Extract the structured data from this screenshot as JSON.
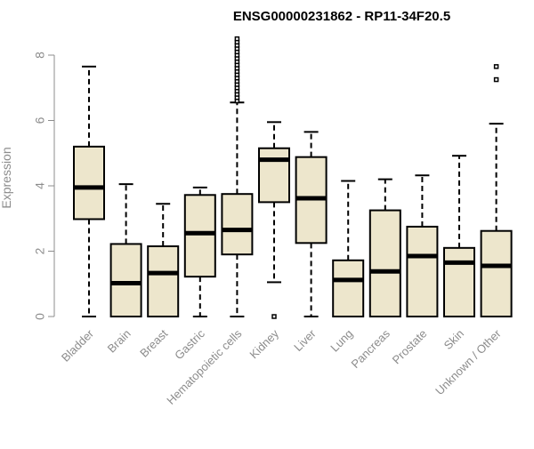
{
  "chart_data": {
    "type": "boxplot",
    "title": "ENSG00000231862 - RP11-34F20.5",
    "xlabel": "",
    "ylabel": "Expression",
    "ylim": [
      0,
      8.6
    ],
    "yticks": [
      0,
      2,
      4,
      6,
      8
    ],
    "grid": false,
    "legend": "none",
    "box_fill": "#ede6cc",
    "box_stroke": "#000000",
    "categories": [
      {
        "name": "Bladder",
        "q1": 2.98,
        "median": 3.95,
        "q3": 5.2,
        "whisker_low": 0.0,
        "whisker_high": 7.65,
        "outliers": []
      },
      {
        "name": "Brain",
        "q1": 0.0,
        "median": 1.02,
        "q3": 2.22,
        "whisker_low": 0.0,
        "whisker_high": 4.05,
        "outliers": []
      },
      {
        "name": "Breast",
        "q1": 0.0,
        "median": 1.33,
        "q3": 2.15,
        "whisker_low": 0.0,
        "whisker_high": 3.45,
        "outliers": []
      },
      {
        "name": "Gastric",
        "q1": 1.22,
        "median": 2.55,
        "q3": 3.72,
        "whisker_low": 0.0,
        "whisker_high": 3.95,
        "outliers": []
      },
      {
        "name": "Hematopoietic cells",
        "q1": 1.9,
        "median": 2.65,
        "q3": 3.75,
        "whisker_low": 0.0,
        "whisker_high": 6.55,
        "outliers": [
          6.6,
          6.7,
          6.8,
          6.9,
          7.0,
          7.1,
          7.2,
          7.3,
          7.4,
          7.5,
          7.6,
          7.7,
          7.8,
          7.9,
          8.0,
          8.1,
          8.2,
          8.3,
          8.4,
          8.5
        ]
      },
      {
        "name": "Kidney",
        "q1": 3.5,
        "median": 4.8,
        "q3": 5.15,
        "whisker_low": 1.05,
        "whisker_high": 5.95,
        "outliers": [
          0.0
        ]
      },
      {
        "name": "Liver",
        "q1": 2.25,
        "median": 3.62,
        "q3": 4.88,
        "whisker_low": 0.0,
        "whisker_high": 5.65,
        "outliers": []
      },
      {
        "name": "Lung",
        "q1": 0.0,
        "median": 1.12,
        "q3": 1.72,
        "whisker_low": 0.0,
        "whisker_high": 4.15,
        "outliers": []
      },
      {
        "name": "Pancreas",
        "q1": 0.0,
        "median": 1.38,
        "q3": 3.25,
        "whisker_low": 0.0,
        "whisker_high": 4.2,
        "outliers": []
      },
      {
        "name": "Prostate",
        "q1": 0.0,
        "median": 1.85,
        "q3": 2.75,
        "whisker_low": 0.0,
        "whisker_high": 4.32,
        "outliers": []
      },
      {
        "name": "Skin",
        "q1": 0.0,
        "median": 1.65,
        "q3": 2.1,
        "whisker_low": 0.0,
        "whisker_high": 4.92,
        "outliers": []
      },
      {
        "name": "Unknown / Other",
        "q1": 0.0,
        "median": 1.55,
        "q3": 2.62,
        "whisker_low": 0.0,
        "whisker_high": 5.9,
        "outliers": [
          7.25,
          7.65
        ]
      }
    ]
  }
}
